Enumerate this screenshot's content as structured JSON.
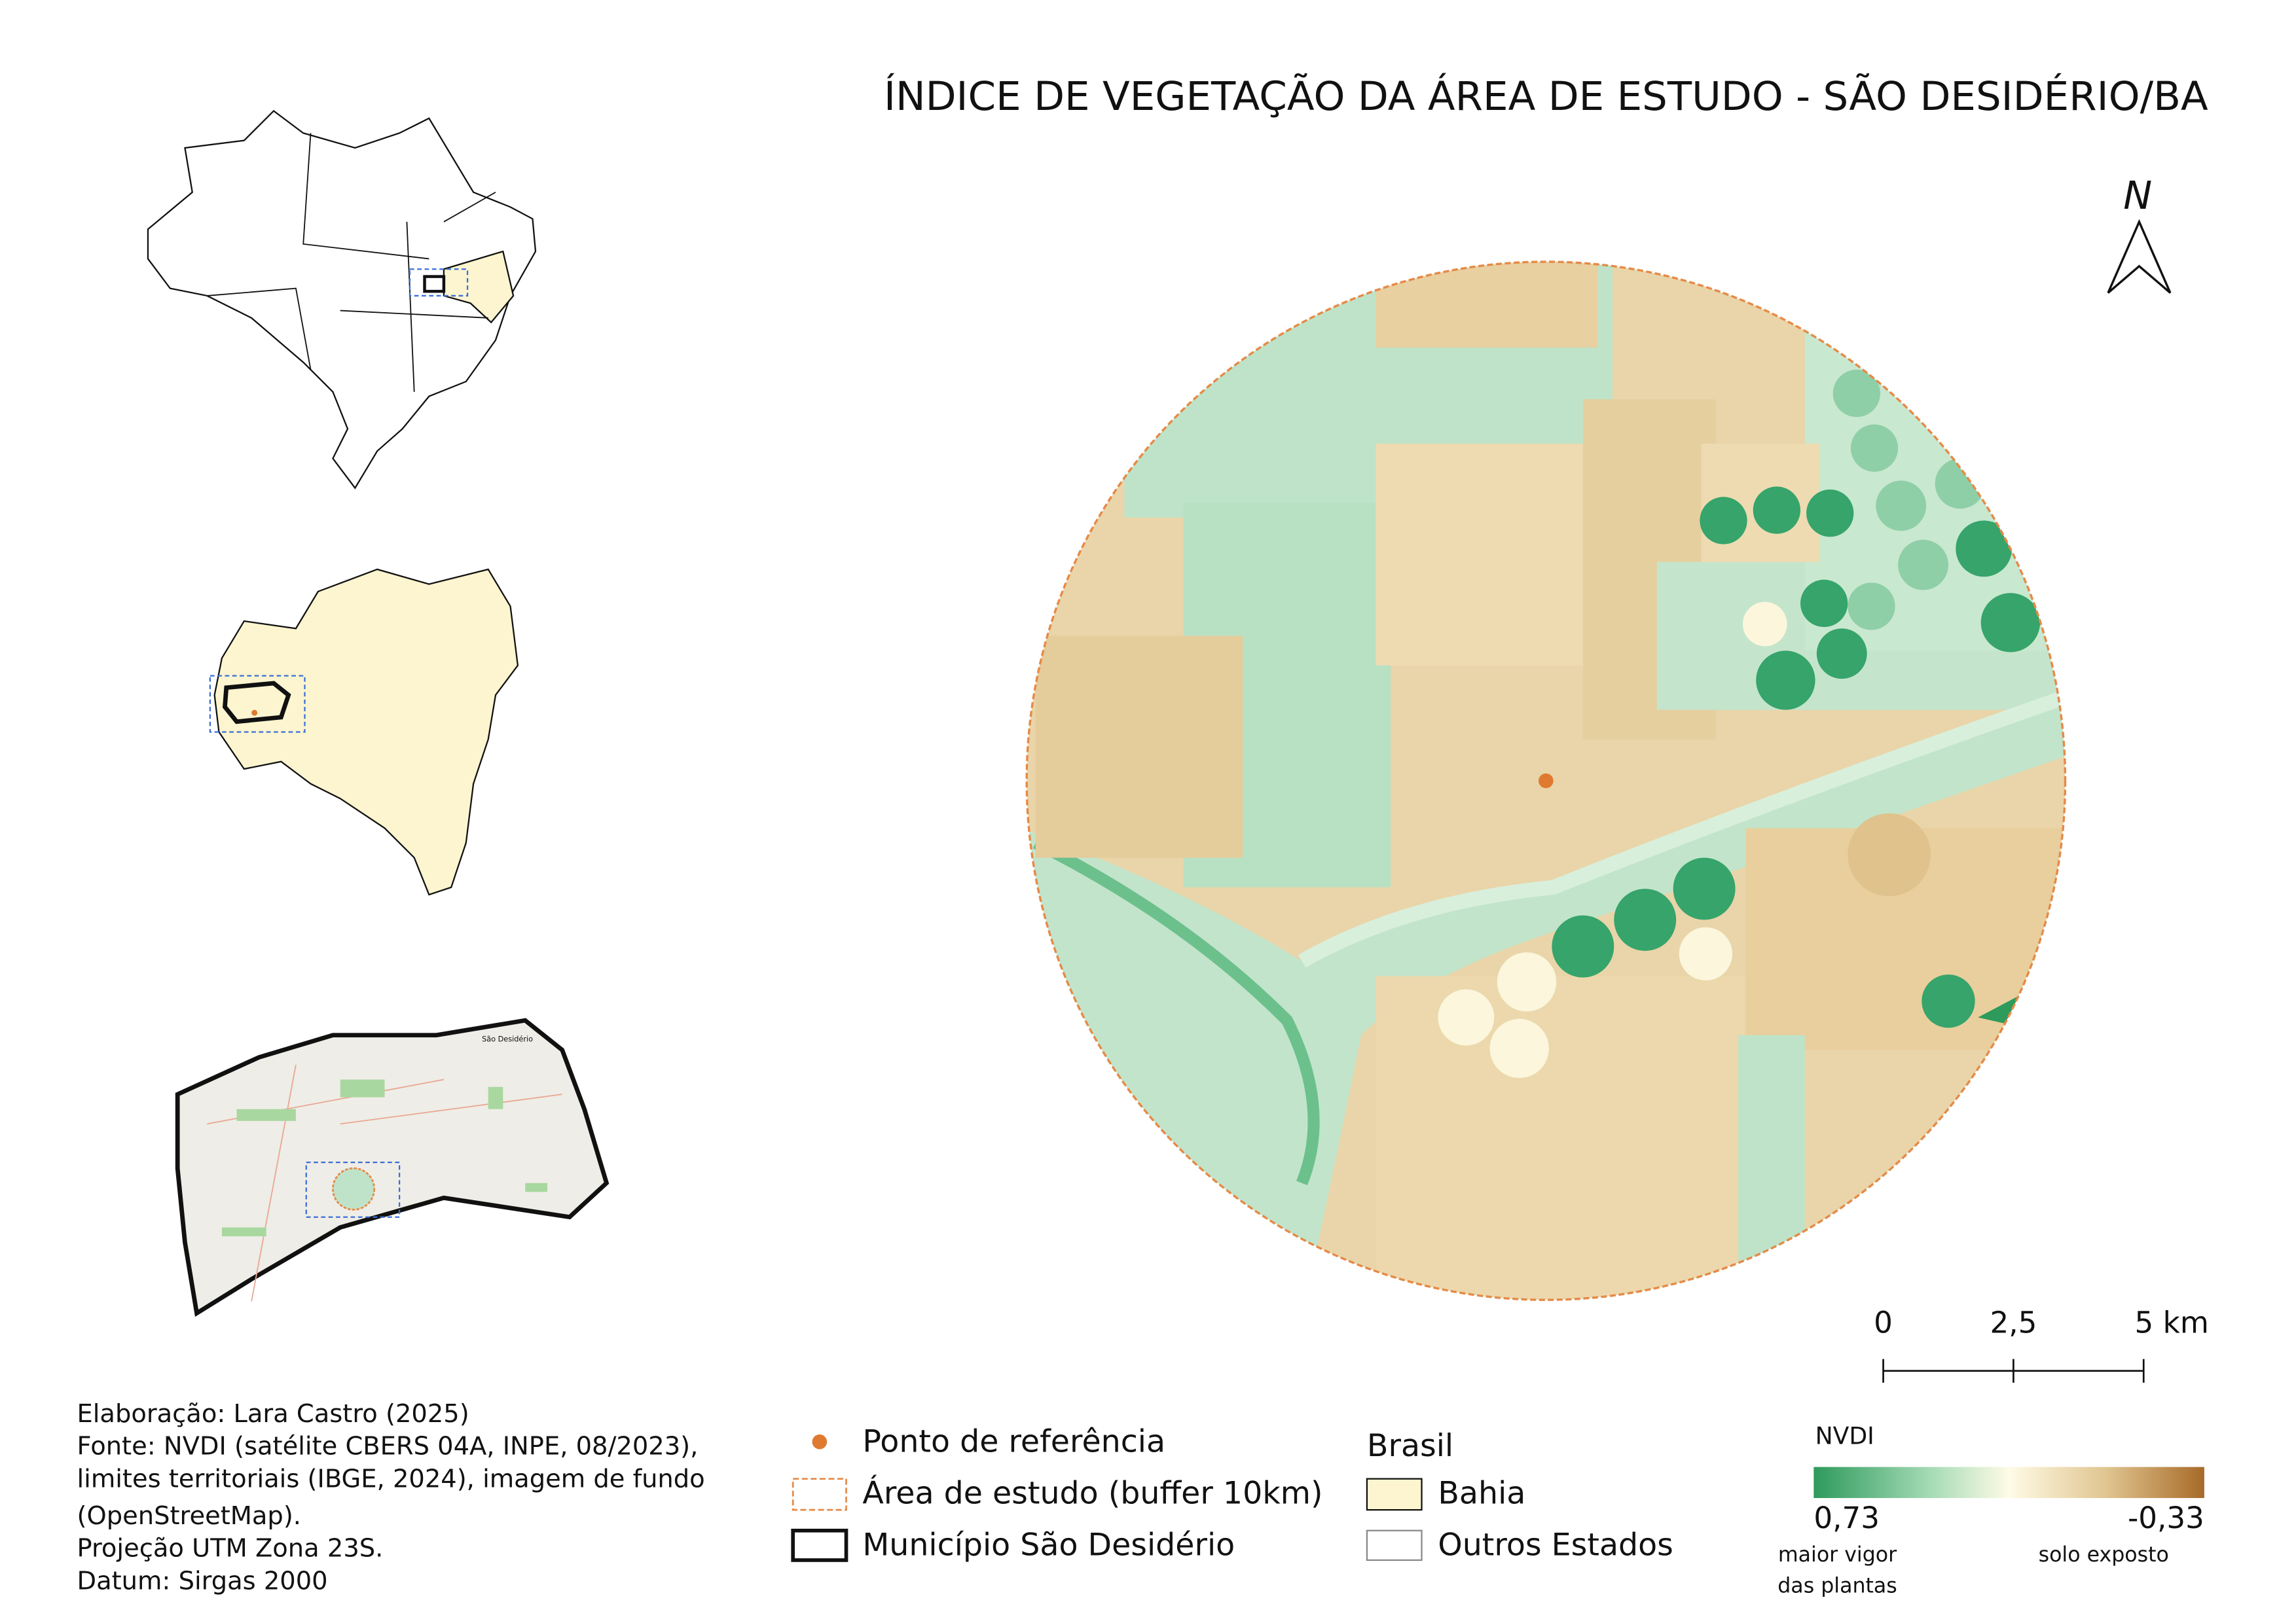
{
  "title": "ÍNDICE DE VEGETAÇÃO DA ÁREA DE ESTUDO - SÃO DESIDÉRIO/BA",
  "north": "N",
  "inset_label": "São Desidério",
  "scale_bar": {
    "labels": [
      "0",
      "2,5",
      "5 km"
    ]
  },
  "credits": [
    "Elaboração: Lara Castro (2025)",
    "Fonte: NVDI (satélite CBERS 04A, INPE, 08/2023),",
    "limites territoriais (IBGE, 2024), imagem de fundo",
    "(OpenStreetMap).",
    "Projeção UTM Zona 23S.",
    "Datum: Sirgas 2000"
  ],
  "legend": {
    "items": [
      "Ponto de referência",
      "Área de estudo (buffer 10km)",
      "Município São Desidério"
    ],
    "brasil": {
      "title": "Brasil",
      "items": [
        "Bahia",
        "Outros Estados"
      ]
    },
    "ndvi": {
      "title": "NVDI",
      "max": "0,73",
      "min": "-0,33",
      "max_note": [
        "maior vigor",
        "das plantas"
      ],
      "min_note": "solo exposto"
    }
  }
}
